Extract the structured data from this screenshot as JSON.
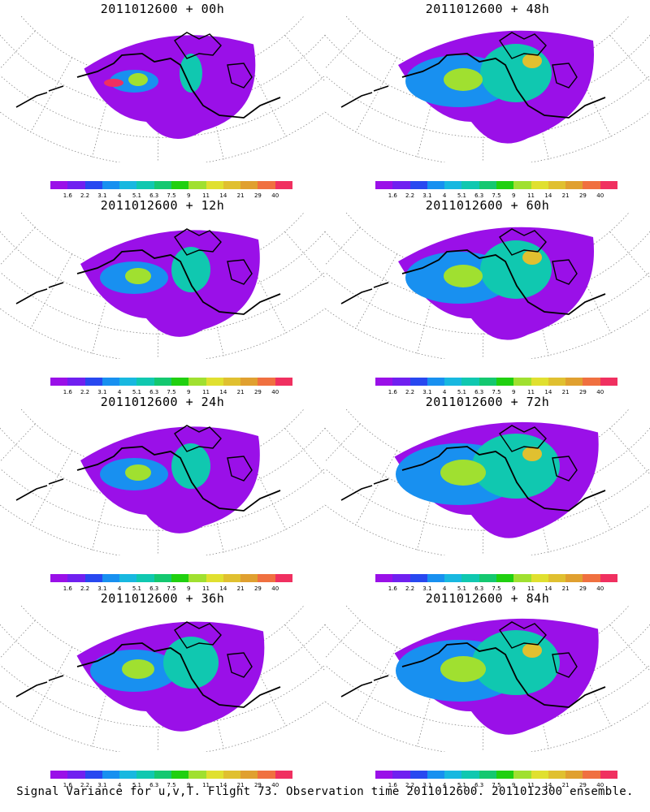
{
  "panels": [
    {
      "title": "2011012600 + 00h",
      "lead": "00h",
      "level": 0
    },
    {
      "title": "2011012600 + 48h",
      "lead": "48h",
      "level": 3
    },
    {
      "title": "2011012600 + 12h",
      "lead": "12h",
      "level": 1
    },
    {
      "title": "2011012600 + 60h",
      "lead": "60h",
      "level": 3
    },
    {
      "title": "2011012600 + 24h",
      "lead": "24h",
      "level": 1
    },
    {
      "title": "2011012600 + 72h",
      "lead": "72h",
      "level": 4
    },
    {
      "title": "2011012600 + 36h",
      "lead": "36h",
      "level": 2
    },
    {
      "title": "2011012600 + 84h",
      "lead": "84h",
      "level": 4
    }
  ],
  "colorbar": {
    "labels": [
      "1.6",
      "2.2",
      "3.1",
      "4",
      "5.1",
      "6.3",
      "7.5",
      "9",
      "11",
      "14",
      "21",
      "29",
      "40"
    ],
    "colors": [
      "#9a10e8",
      "#7020f0",
      "#2848f0",
      "#1890f0",
      "#18b8e0",
      "#10c8b0",
      "#14c870",
      "#20d010",
      "#a0e030",
      "#e0e030",
      "#e0c030",
      "#e0a030",
      "#f07040",
      "#f03060"
    ]
  },
  "caption": "Signal Variance for u,v,T. Flight 73. Observation time 2011012600. 2011012300 ensemble."
}
